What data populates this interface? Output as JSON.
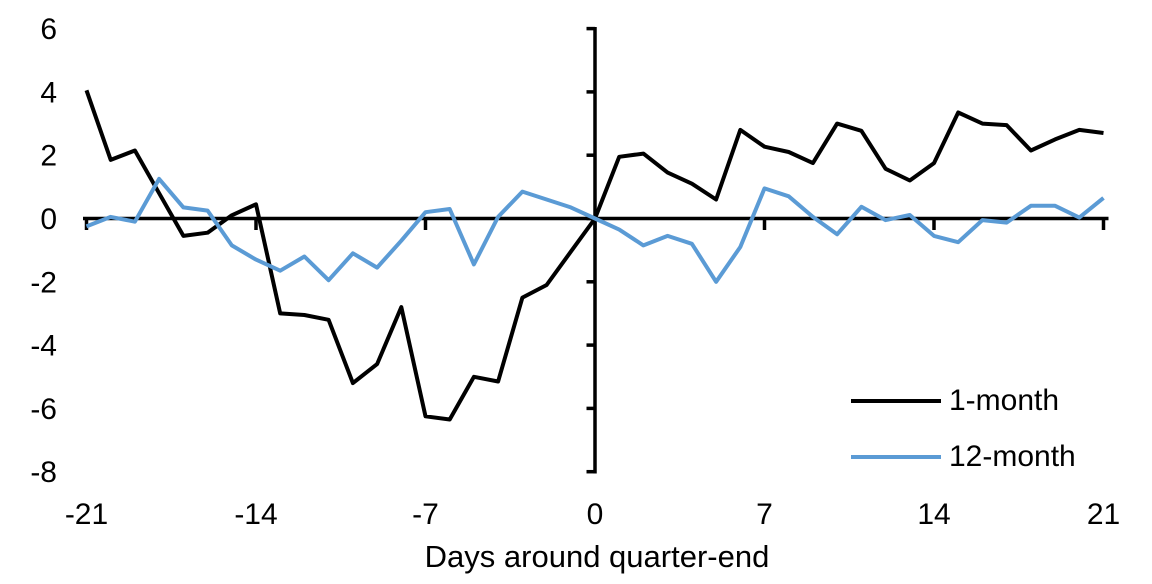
{
  "x_axis_title": "Days around quarter-end",
  "legend": {
    "items": [
      {
        "label": "1-month",
        "color": "#000000"
      },
      {
        "label": "12-month",
        "color": "#5b9bd5"
      }
    ]
  },
  "chart_data": {
    "type": "line",
    "title": "",
    "xlabel": "Days around quarter-end",
    "ylabel": "",
    "x": [
      -21,
      -20,
      -19,
      -18,
      -17,
      -16,
      -15,
      -14,
      -13,
      -12,
      -11,
      -10,
      -9,
      -8,
      -7,
      -6,
      -5,
      -4,
      -3,
      -2,
      -1,
      0,
      1,
      2,
      3,
      4,
      5,
      6,
      7,
      8,
      9,
      10,
      11,
      12,
      13,
      14,
      15,
      16,
      17,
      18,
      19,
      20,
      21
    ],
    "series": [
      {
        "name": "1-month",
        "color": "#000000",
        "values": [
          4.05,
          1.85,
          2.15,
          0.8,
          -0.55,
          -0.45,
          0.1,
          0.45,
          -3.0,
          -3.05,
          -3.2,
          -5.2,
          -4.6,
          -2.8,
          -6.25,
          -6.35,
          -5.0,
          -5.15,
          -2.5,
          -2.1,
          -1.05,
          0,
          1.95,
          2.05,
          1.45,
          1.1,
          0.6,
          2.8,
          2.27,
          2.1,
          1.75,
          3.0,
          2.77,
          1.57,
          1.2,
          1.75,
          3.35,
          3.0,
          2.95,
          2.15,
          2.5,
          2.8,
          2.7
        ]
      },
      {
        "name": "12-month",
        "color": "#5b9bd5",
        "values": [
          -0.25,
          0.05,
          -0.1,
          1.25,
          0.35,
          0.25,
          -0.85,
          -1.3,
          -1.65,
          -1.2,
          -1.95,
          -1.1,
          -1.55,
          -0.7,
          0.2,
          0.3,
          -1.45,
          0.05,
          0.85,
          0.6,
          0.35,
          0,
          -0.35,
          -0.85,
          -0.55,
          -0.8,
          -2.0,
          -0.9,
          0.95,
          0.7,
          0.05,
          -0.5,
          0.37,
          -0.05,
          0.11,
          -0.55,
          -0.75,
          -0.05,
          -0.13,
          0.4,
          0.4,
          0.03,
          0.65
        ]
      }
    ],
    "x_ticks": [
      -21,
      -14,
      -7,
      0,
      7,
      14,
      21
    ],
    "y_ticks": [
      6,
      4,
      2,
      0,
      -2,
      -4,
      -6,
      -8
    ],
    "xlim": [
      -21,
      21
    ],
    "ylim": [
      -8,
      6
    ],
    "grid": false,
    "legend_position": "lower-right",
    "axis_color": "#000000"
  }
}
